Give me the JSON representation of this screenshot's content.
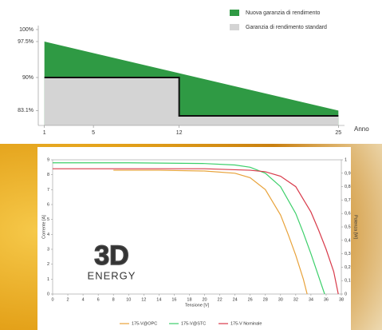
{
  "chart_data": [
    {
      "type": "area",
      "x_label": "Anno",
      "xlim": [
        0.5,
        25.5
      ],
      "xticks": [
        1,
        5,
        12,
        25
      ],
      "ylim": [
        80,
        100
      ],
      "yticks": [
        {
          "value": 100,
          "label": "100%"
        },
        {
          "value": 97.5,
          "label": "97.5%"
        },
        {
          "value": 90,
          "label": "90%"
        },
        {
          "value": 83.1,
          "label": "83.1%"
        }
      ],
      "series": [
        {
          "name": "Nuova garanzia di rendimento",
          "color": "#2f9a44",
          "x": [
            1,
            25
          ],
          "values": [
            97.5,
            83.1
          ]
        },
        {
          "name": "Garanzia di rendimento standard",
          "color": "#d4d4d4",
          "edge_color": "#111111",
          "x": [
            1,
            12,
            12,
            25
          ],
          "values": [
            90,
            90,
            82,
            82
          ]
        }
      ]
    },
    {
      "type": "line",
      "x_label": "Tensione [V]",
      "y_label": "Corrente [A]",
      "y2_label": "Potenza [W]",
      "xlim": [
        0,
        38
      ],
      "xticks": [
        0,
        2,
        4,
        6,
        8,
        10,
        12,
        14,
        16,
        18,
        20,
        22,
        24,
        26,
        28,
        30,
        32,
        34,
        36,
        38
      ],
      "ylim": [
        0,
        9
      ],
      "yticks": [
        0,
        1,
        2,
        3,
        4,
        5,
        6,
        7,
        8,
        9
      ],
      "y2lim": [
        0,
        1
      ],
      "y2ticks": [
        0,
        {
          "value": 0.1,
          "label": "0,1"
        },
        {
          "value": 0.2,
          "label": "0,2"
        },
        {
          "value": 0.3,
          "label": "0,3"
        },
        {
          "value": 0.4,
          "label": "0,4"
        },
        {
          "value": 0.5,
          "label": "0,5"
        },
        {
          "value": 0.6,
          "label": "0,6"
        },
        {
          "value": 0.7,
          "label": "0,7"
        },
        {
          "value": 0.8,
          "label": "0,8"
        },
        {
          "value": 0.9,
          "label": "0,9"
        },
        1
      ],
      "series": [
        {
          "name": "175-V@OPC",
          "color": "#e8a23a",
          "x": [
            8,
            14,
            20,
            24,
            26,
            28,
            30,
            31,
            32,
            33,
            33.5
          ],
          "values": [
            8.3,
            8.3,
            8.25,
            8.1,
            7.8,
            7.0,
            5.3,
            4.0,
            2.6,
            1.0,
            0
          ]
        },
        {
          "name": "175-V@STC",
          "color": "#3ccf6a",
          "x": [
            0,
            10,
            20,
            24,
            26,
            28,
            30,
            32,
            33,
            34,
            35,
            35.8
          ],
          "values": [
            8.8,
            8.8,
            8.75,
            8.65,
            8.5,
            8.1,
            7.2,
            5.4,
            4.1,
            2.7,
            1.2,
            0
          ]
        },
        {
          "name": "175-V Nominale",
          "color": "#d83a4a",
          "x": [
            0,
            10,
            20,
            26,
            28,
            30,
            32,
            34,
            35,
            36,
            37,
            37.6
          ],
          "values": [
            8.4,
            8.4,
            8.4,
            8.3,
            8.2,
            7.9,
            7.2,
            5.5,
            4.3,
            3.0,
            1.5,
            0
          ]
        }
      ]
    }
  ],
  "logo": {
    "main": "3D",
    "sub": "ENERGY"
  }
}
